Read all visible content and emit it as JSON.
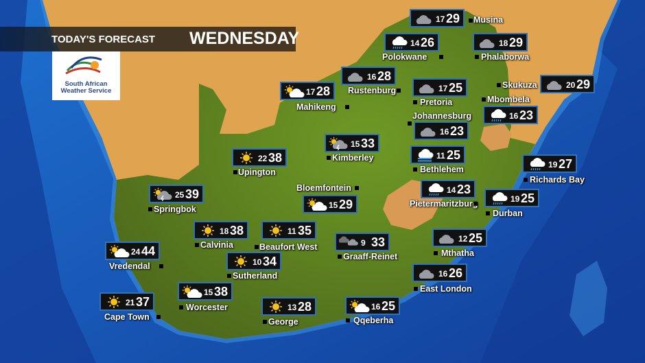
{
  "header": {
    "title": "TODAY'S FORECAST",
    "day": "WEDNESDAY"
  },
  "logo": {
    "line1": "South African",
    "line2": "Weather Service"
  },
  "colors": {
    "ocean": "#1a5fc0",
    "land": "#e0a450",
    "country": "#7d9a2a",
    "box_border": "#2f74b8",
    "sun": "#f5c21a"
  },
  "cities": [
    {
      "name": "Musina",
      "min": "17",
      "max": "29",
      "icon": "cloud"
    },
    {
      "name": "Polokwane",
      "min": "14",
      "max": "26",
      "icon": "rain"
    },
    {
      "name": "Phalaborwa",
      "min": "18",
      "max": "29",
      "icon": "cloud"
    },
    {
      "name": "Rustenburg",
      "min": "16",
      "max": "28",
      "icon": "cloud"
    },
    {
      "name": "Mahikeng",
      "min": "17",
      "max": "28",
      "icon": "partly-cloudy"
    },
    {
      "name": "Pretoria",
      "min": "17",
      "max": "25",
      "icon": "cloud"
    },
    {
      "name": "Skukuza",
      "min": "20",
      "max": "29",
      "icon": "cloud"
    },
    {
      "name": "Mbombela",
      "min": "16",
      "max": "23",
      "icon": "rain"
    },
    {
      "name": "Johannesburg",
      "min": "16",
      "max": "23",
      "icon": "cloud"
    },
    {
      "name": "Kimberley",
      "min": "15",
      "max": "33",
      "icon": "thunder"
    },
    {
      "name": "Bethlehem",
      "min": "11",
      "max": "25",
      "icon": "fog"
    },
    {
      "name": "Upington",
      "min": "22",
      "max": "38",
      "icon": "sun"
    },
    {
      "name": "Richards Bay",
      "min": "19",
      "max": "27",
      "icon": "rain"
    },
    {
      "name": "Springbok",
      "min": "25",
      "max": "39",
      "icon": "thunder"
    },
    {
      "name": "Bloemfontein",
      "min": "15",
      "max": "29",
      "icon": "partly-cloudy"
    },
    {
      "name": "Pietermaritzburg",
      "min": "14",
      "max": "23",
      "icon": "rain"
    },
    {
      "name": "Durban",
      "min": "19",
      "max": "25",
      "icon": "rain"
    },
    {
      "name": "Calvinia",
      "min": "18",
      "max": "38",
      "icon": "sun"
    },
    {
      "name": "Beaufort West",
      "min": "11",
      "max": "35",
      "icon": "sun"
    },
    {
      "name": "Graaff-Reinet",
      "min": "9",
      "max": "33",
      "icon": "two-clouds"
    },
    {
      "name": "Mthatha",
      "min": "12",
      "max": "25",
      "icon": "cloud"
    },
    {
      "name": "Vredendal",
      "min": "24",
      "max": "44",
      "icon": "partly-cloudy"
    },
    {
      "name": "Sutherland",
      "min": "10",
      "max": "34",
      "icon": "sun"
    },
    {
      "name": "East London",
      "min": "16",
      "max": "26",
      "icon": "cloud"
    },
    {
      "name": "Worcester",
      "min": "15",
      "max": "38",
      "icon": "partly-cloudy"
    },
    {
      "name": "Cape Town",
      "min": "21",
      "max": "37",
      "icon": "sun"
    },
    {
      "name": "George",
      "min": "13",
      "max": "28",
      "icon": "sun"
    },
    {
      "name": "Qqeberha",
      "min": "16",
      "max": "25",
      "icon": "partly-cloudy"
    }
  ]
}
